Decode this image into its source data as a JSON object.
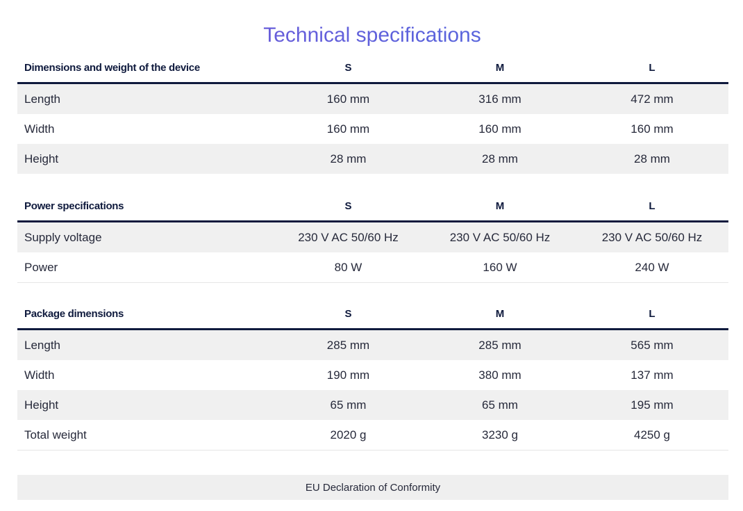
{
  "page": {
    "title": "Technical specifications"
  },
  "sections": [
    {
      "heading": "Dimensions and weight of the device",
      "sizes": [
        "S",
        "M",
        "L"
      ],
      "rows": [
        {
          "label": "Length",
          "values": [
            "160 mm",
            "316 mm",
            "472 mm"
          ]
        },
        {
          "label": "Width",
          "values": [
            "160 mm",
            "160 mm",
            "160 mm"
          ]
        },
        {
          "label": "Height",
          "values": [
            "28 mm",
            "28 mm",
            "28 mm"
          ]
        }
      ]
    },
    {
      "heading": "Power specifications",
      "sizes": [
        "S",
        "M",
        "L"
      ],
      "rows": [
        {
          "label": "Supply voltage",
          "values": [
            "230 V AC 50/60 Hz",
            "230 V AC 50/60 Hz",
            "230 V AC 50/60 Hz"
          ]
        },
        {
          "label": "Power",
          "values": [
            "80 W",
            "160 W",
            "240 W"
          ]
        }
      ]
    },
    {
      "heading": "Package dimensions",
      "sizes": [
        "S",
        "M",
        "L"
      ],
      "rows": [
        {
          "label": "Length",
          "values": [
            "285 mm",
            "285 mm",
            "565 mm"
          ]
        },
        {
          "label": "Width",
          "values": [
            "190 mm",
            "380 mm",
            "137 mm"
          ]
        },
        {
          "label": "Height",
          "values": [
            "65 mm",
            "65 mm",
            "195 mm"
          ]
        },
        {
          "label": "Total weight",
          "values": [
            "2020 g",
            "3230 g",
            "4250 g"
          ]
        }
      ]
    }
  ],
  "footer": {
    "eu_declaration_label": "EU Declaration of Conformity"
  },
  "colors": {
    "title_gradient_start": "#7a54d8",
    "title_gradient_end": "#4a6fe0",
    "header_text": "#0f1a3d",
    "header_rule": "#0f1a3d",
    "row_shade": "#f0f0f0"
  }
}
